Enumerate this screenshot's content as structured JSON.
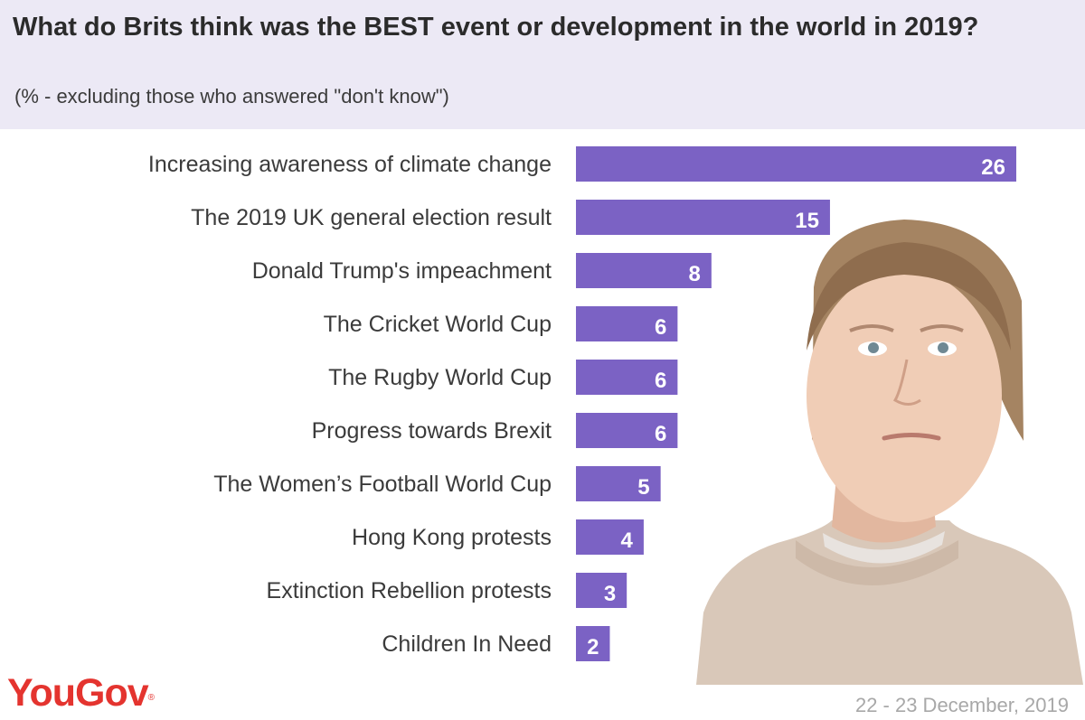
{
  "header": {
    "title": "What do Brits think was the BEST event or development in the world in 2019?",
    "subtitle": "(% - excluding those who answered \"don't know\")"
  },
  "footer": {
    "logo": "YouGov",
    "logo_mark": "®",
    "date": "22 - 23 December, 2019"
  },
  "colors": {
    "bar": "#7b62c4",
    "header_bg": "#ece9f5",
    "brand": "#e4342f",
    "label_text": "#3b3b3b"
  },
  "chart_data": {
    "type": "bar",
    "orientation": "horizontal",
    "title": "What do Brits think was the BEST event or development in the world in 2019?",
    "subtitle": "(% - excluding those who answered \"don't know\")",
    "categories": [
      "Increasing awareness of climate change",
      "The 2019 UK general election result",
      "Donald Trump's impeachment",
      "The Cricket World Cup",
      "The Rugby World Cup",
      "Progress towards Brexit",
      "The Women’s Football World Cup",
      "Hong Kong protests",
      "Extinction Rebellion protests",
      "Children In Need"
    ],
    "values": [
      26,
      15,
      8,
      6,
      6,
      6,
      5,
      4,
      3,
      2
    ],
    "data_labels": true,
    "xlim": [
      0,
      26
    ],
    "grid": false,
    "legend": "none"
  }
}
